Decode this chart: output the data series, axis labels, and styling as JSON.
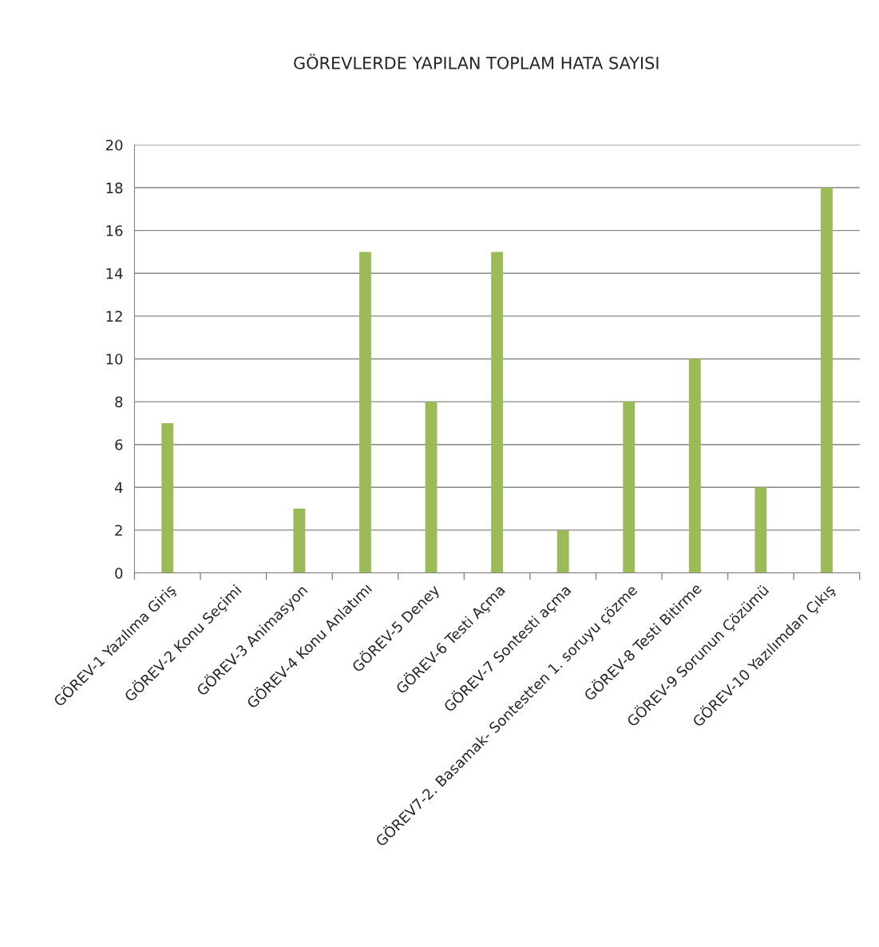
{
  "chart_data": {
    "type": "bar",
    "title": "GÖREVLERDE YAPILAN TOPLAM HATA SAYISI",
    "categories": [
      "GÖREV-1 Yazılıma Giriş",
      "GÖREV-2 Konu Seçimi",
      "GÖREV-3 Animasyon",
      "GÖREV-4 Konu Anlatımı",
      "GÖREV-5 Deney",
      "GÖREV-6 Testi Açma",
      "GÖREV-7 Sontesti açma",
      "GÖREV7-2. Basamak- Sontestten 1. soruyu çözme",
      "GÖREV-8 Testi Bitirme",
      "GÖREV-9 Sorunun Çözümü",
      "GÖREV-10 Yazılımdan Çıkış"
    ],
    "values": [
      7,
      0,
      3,
      15,
      8,
      15,
      2,
      8,
      10,
      4,
      18
    ],
    "color": "#9bbb59",
    "ylim": [
      0,
      20
    ],
    "yticks": [
      0,
      2,
      4,
      6,
      8,
      10,
      12,
      14,
      16,
      18,
      20
    ],
    "grid": "y"
  }
}
